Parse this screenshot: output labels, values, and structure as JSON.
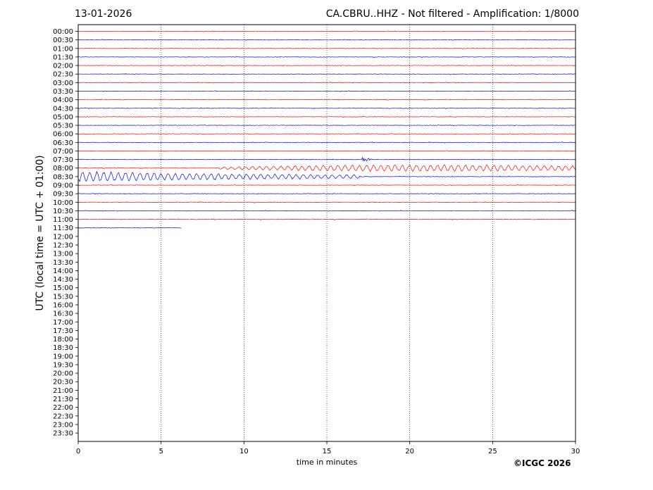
{
  "header": {
    "date": "13-01-2026",
    "title": "CA.CBRU..HHZ - Not filtered - Amplification: 1/8000"
  },
  "footer": {
    "copyright": "©ICGC 2026"
  },
  "chart_data": {
    "type": "line",
    "title": "CA.CBRU..HHZ - Not filtered - Amplification: 1/8000",
    "xlabel": "time in minutes",
    "ylabel": "UTC (local time = UTC + 01:00)",
    "xlim": [
      0,
      30
    ],
    "x_ticks": [
      0,
      5,
      10,
      15,
      20,
      25,
      30
    ],
    "grid": "vertical dotted at x ticks",
    "row_labels": [
      "00:00",
      "00:30",
      "01:00",
      "01:30",
      "02:00",
      "02:30",
      "03:00",
      "03:30",
      "04:00",
      "04:30",
      "05:00",
      "05:30",
      "06:00",
      "06:30",
      "07:00",
      "07:30",
      "08:00",
      "08:30",
      "09:00",
      "09:30",
      "10:00",
      "10:30",
      "11:00",
      "11:30",
      "12:00",
      "12:30",
      "13:00",
      "13:30",
      "14:00",
      "14:30",
      "15:00",
      "15:30",
      "16:00",
      "16:30",
      "17:00",
      "17:30",
      "18:00",
      "18:30",
      "19:00",
      "19:30",
      "20:00",
      "20:30",
      "21:00",
      "21:30",
      "22:00",
      "22:30",
      "23:00",
      "23:30"
    ],
    "series_colors": [
      "#ff0000",
      "#0000ff"
    ],
    "traces_recorded": 24,
    "last_trace_end_minute": 6.2,
    "events": [
      {
        "row": "07:30",
        "start_minute": 17.1,
        "end_minute": 18.2,
        "amplitude": "high"
      },
      {
        "row": "08:00",
        "start_minute": 8.5,
        "end_minute": 30,
        "amplitude": "medium"
      },
      {
        "row": "08:30",
        "start_minute": 0,
        "end_minute": 17,
        "amplitude": "medium"
      }
    ]
  }
}
